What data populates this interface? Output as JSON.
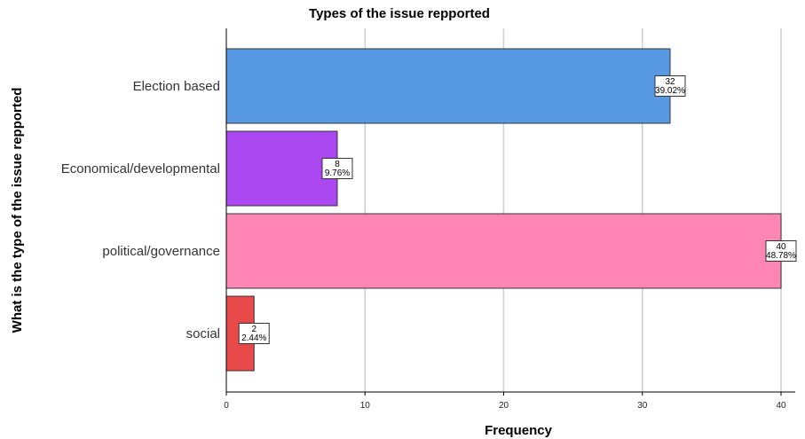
{
  "chart_data": {
    "type": "bar",
    "orientation": "horizontal",
    "title": "Types of the issue repported",
    "xlabel": "Frequency",
    "ylabel": "What is the type of the issue repported",
    "categories": [
      "Election based",
      "Economical/developmental",
      "political/governance",
      "social"
    ],
    "values": [
      32,
      8,
      40,
      2
    ],
    "percent_labels": [
      "39.02%",
      "9.76%",
      "48.78%",
      "2.44%"
    ],
    "count_labels": [
      "32",
      "8",
      "40",
      "2"
    ],
    "colors": [
      "#5899e3",
      "#aa47f0",
      "#ff85b4",
      "#e84a4a"
    ],
    "xlim": [
      0,
      40
    ],
    "xticks": [
      "0",
      "10",
      "20",
      "30",
      "40"
    ],
    "grid": true,
    "legend": "none"
  }
}
